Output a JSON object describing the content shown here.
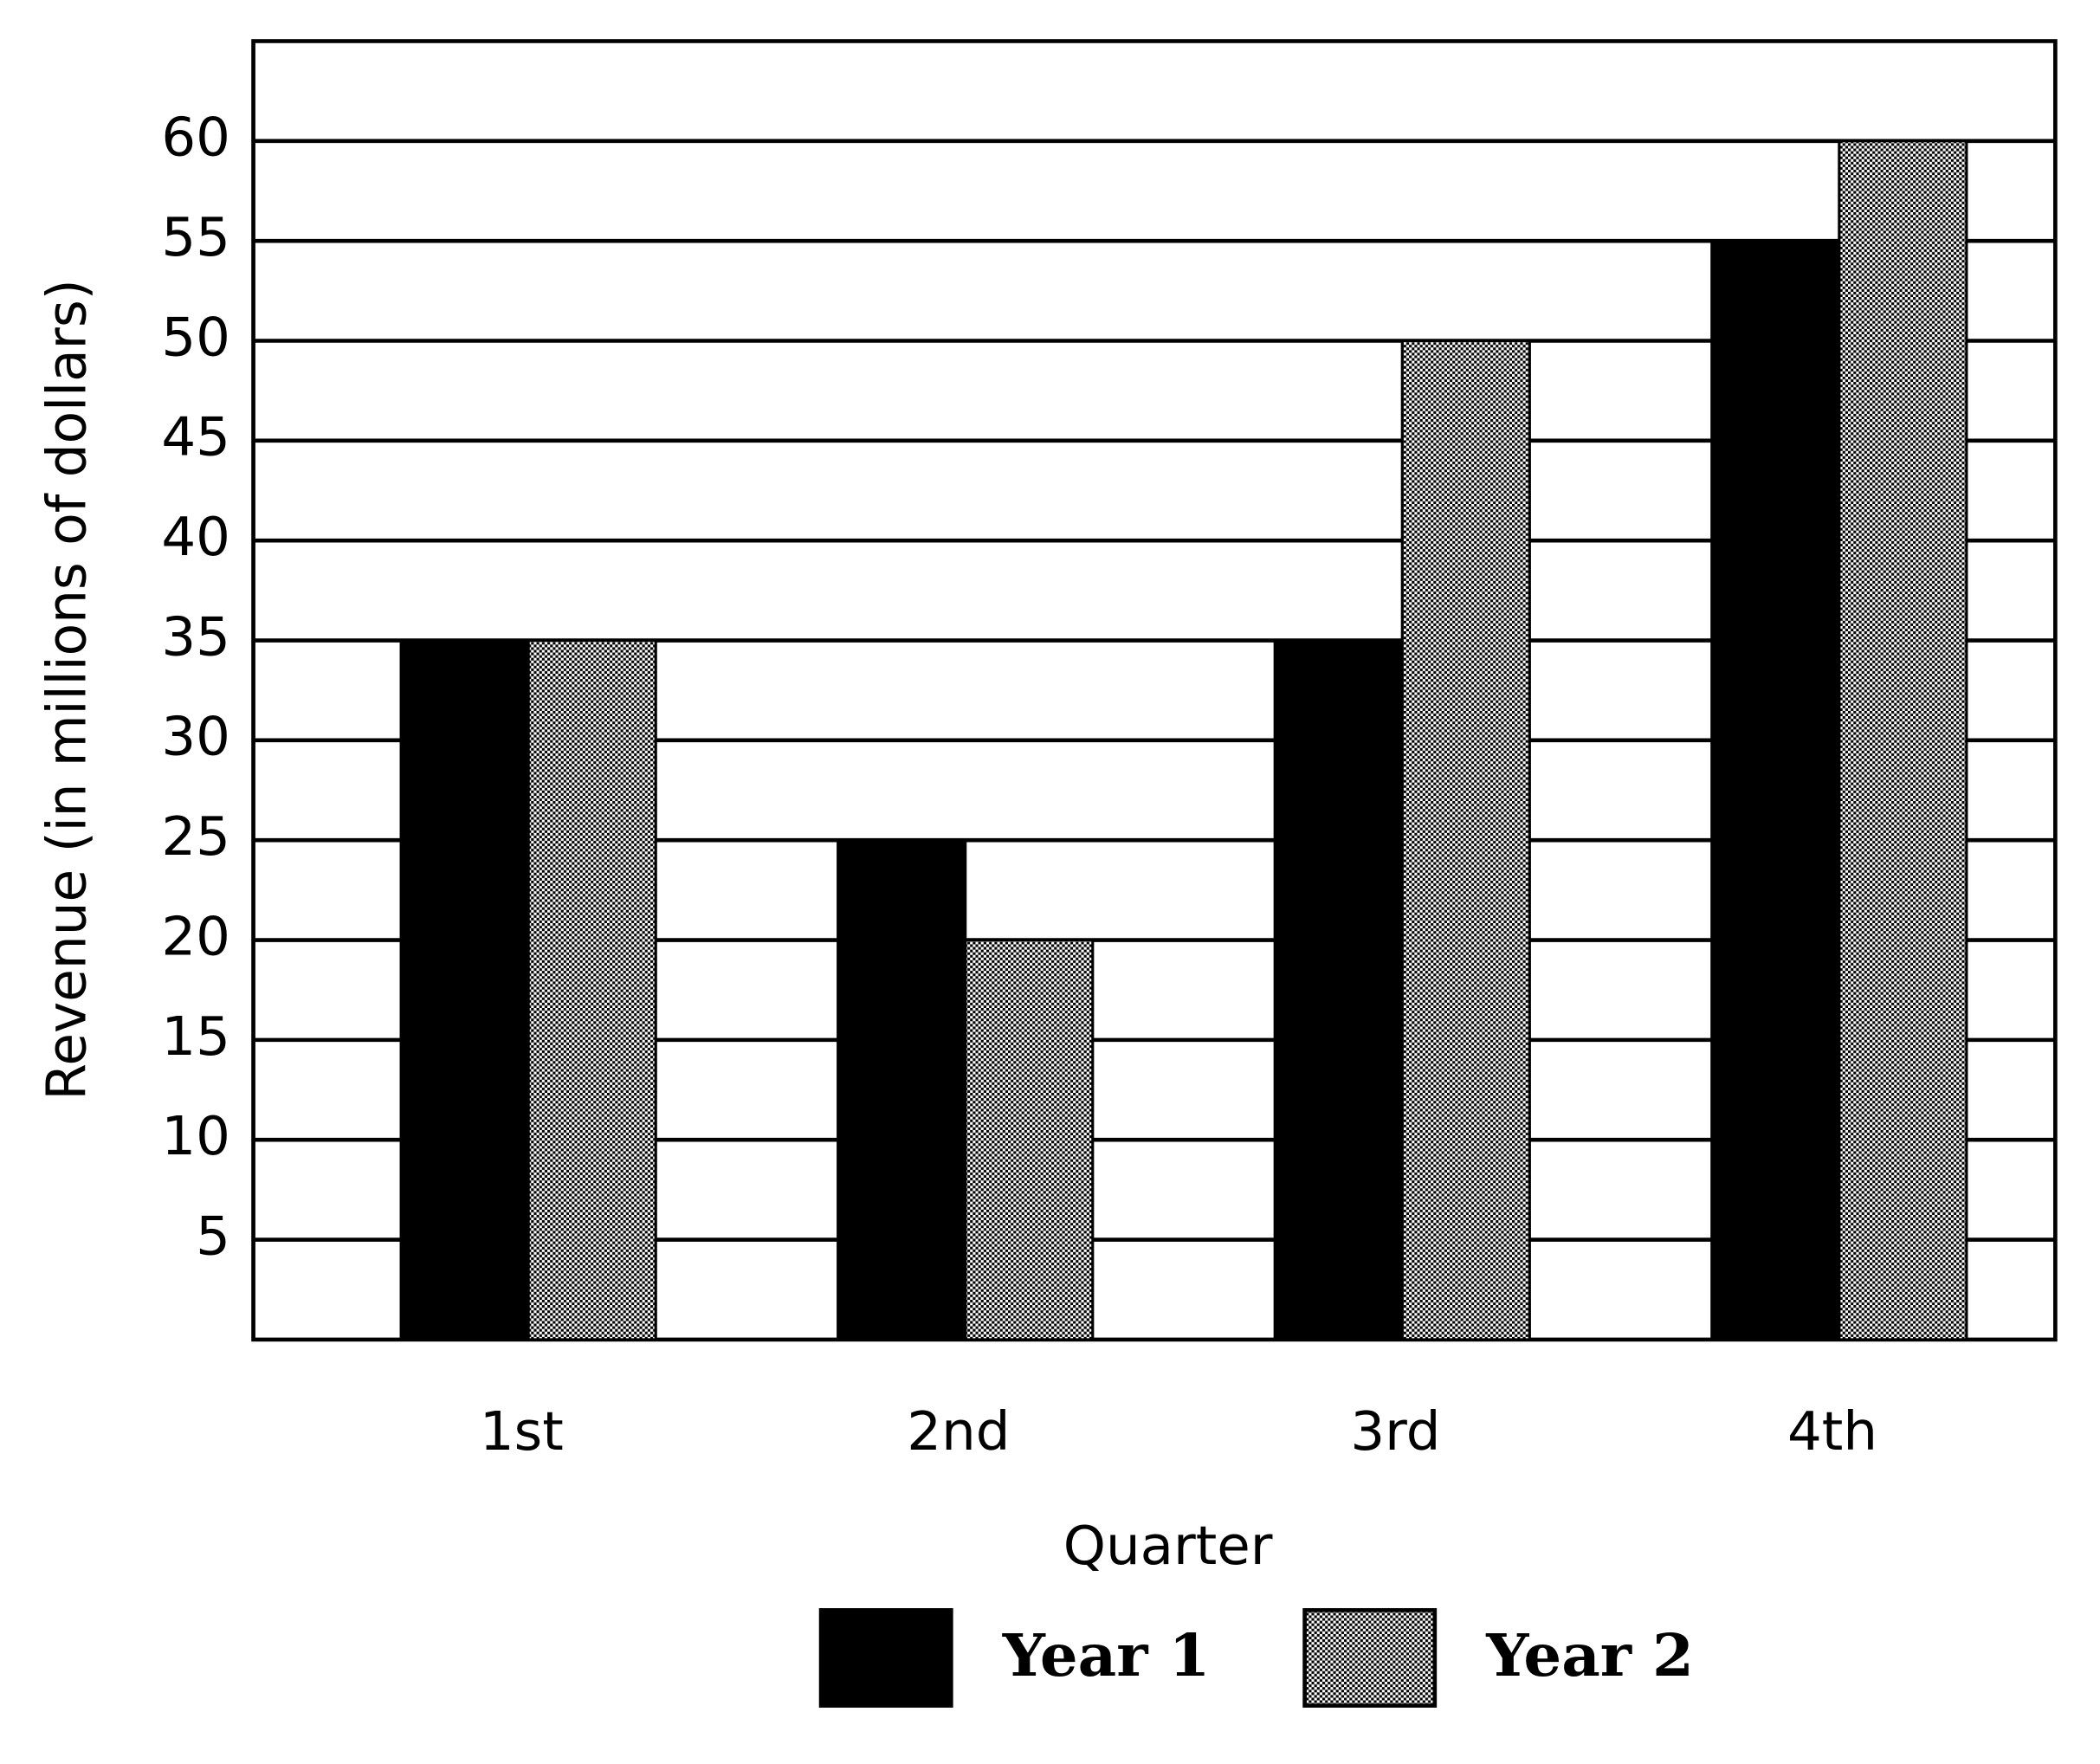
{
  "chart_data": {
    "type": "bar",
    "categories": [
      "1st",
      "2nd",
      "3rd",
      "4th"
    ],
    "series": [
      {
        "name": "Year 1",
        "color": "#000000",
        "values": [
          35,
          25,
          35,
          55
        ]
      },
      {
        "name": "Year 2",
        "color": "#000000",
        "fill": "dots",
        "values": [
          35,
          20,
          50,
          60
        ]
      }
    ],
    "x_label": "Quarter",
    "y_label": "Revenue (in millions of dollars)",
    "ylim": [
      0,
      65
    ],
    "yticks": [
      5,
      10,
      15,
      20,
      25,
      30,
      35,
      40,
      45,
      50,
      55,
      60
    ],
    "grid": true,
    "legend": "bottom"
  }
}
